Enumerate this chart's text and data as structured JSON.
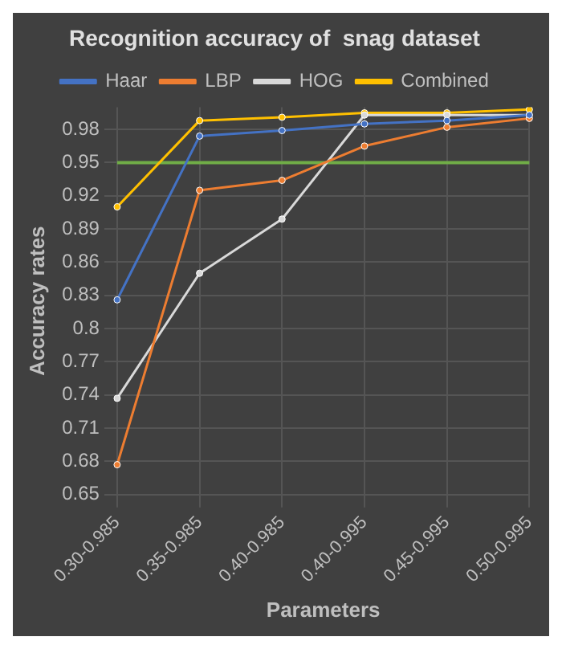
{
  "chart_data": {
    "type": "line",
    "title": "Recognition accuracy of  snag dataset",
    "xlabel": "Parameters",
    "ylabel": "Accuracy rates",
    "categories": [
      "0.30-0.985",
      "0.35-0.985",
      "0.40-0.985",
      "0.40-0.995",
      "0.45-0.995",
      "0.50-0.995"
    ],
    "series": [
      {
        "name": "Haar",
        "color": "#4472c4",
        "values": [
          0.826,
          0.974,
          0.979,
          0.985,
          0.988,
          0.993
        ]
      },
      {
        "name": "LBP",
        "color": "#ed7d31",
        "values": [
          0.677,
          0.925,
          0.934,
          0.965,
          0.982,
          0.99
        ]
      },
      {
        "name": "HOG",
        "color": "#d9d9d9",
        "values": [
          0.737,
          0.85,
          0.899,
          0.993,
          0.993,
          0.993
        ]
      },
      {
        "name": "Combined",
        "color": "#ffc000",
        "values": [
          0.91,
          0.988,
          0.991,
          0.995,
          0.995,
          0.998
        ]
      }
    ],
    "ylim": [
      0.65,
      1.0
    ],
    "yticks": [
      0.65,
      0.68,
      0.71,
      0.74,
      0.77,
      0.8,
      0.83,
      0.86,
      0.89,
      0.92,
      0.95,
      0.98
    ],
    "ref_lines": [
      {
        "axis": "y",
        "value": 0.95,
        "color": "#70ad47"
      }
    ],
    "grid": true,
    "legend": "top",
    "marker": "circle",
    "line_style": "solid"
  }
}
